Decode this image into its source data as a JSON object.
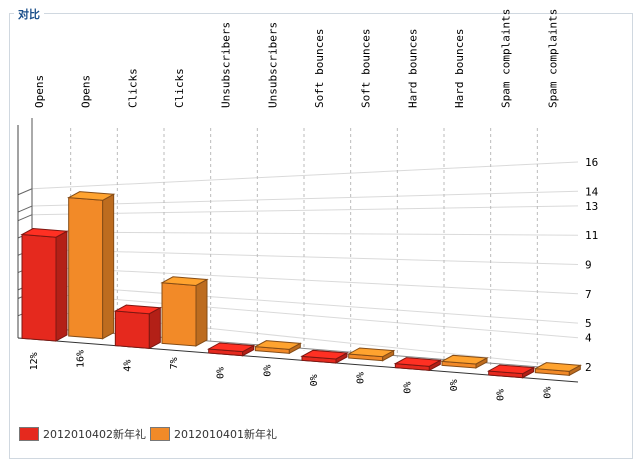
{
  "panel": {
    "title": "对比"
  },
  "chart_data": {
    "type": "bar",
    "categories": [
      "Opens",
      "Clicks",
      "Unsubscribers",
      "Soft bounces",
      "Hard bounces",
      "Spam complaints"
    ],
    "series": [
      {
        "name": "2012010402新年礼",
        "color": "#e5291e",
        "values": [
          12,
          4,
          0,
          0,
          0,
          0
        ],
        "labels": [
          "12%",
          "4%",
          "0%",
          "0%",
          "0%",
          "0%"
        ]
      },
      {
        "name": "2012010401新年礼",
        "color": "#f28a28",
        "values": [
          16,
          7,
          0,
          0,
          0,
          0
        ],
        "labels": [
          "16%",
          "7%",
          "0%",
          "0%",
          "0%",
          "0%"
        ]
      }
    ],
    "y_ticks": [
      "2",
      "4",
      "5",
      "7",
      "9",
      "11",
      "13",
      "14",
      "16"
    ],
    "ylim": [
      0,
      17
    ],
    "grid": true,
    "legend": "bottom-left"
  }
}
